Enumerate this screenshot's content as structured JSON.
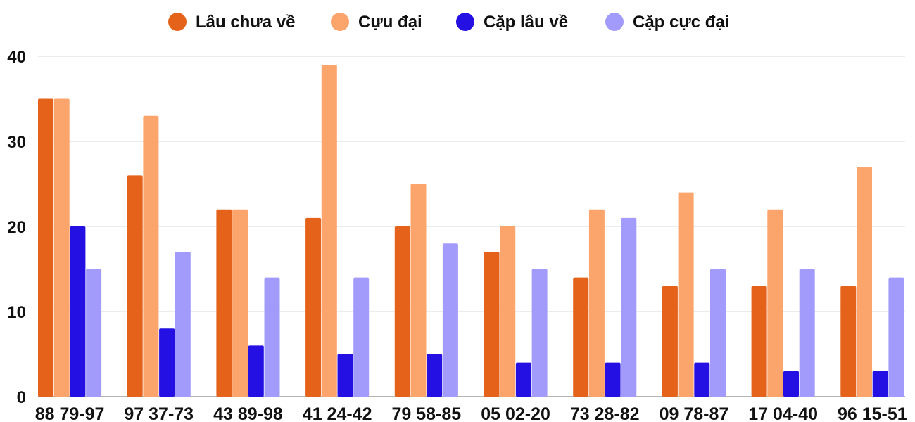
{
  "chart_data": {
    "type": "bar",
    "categories": [
      "88 79-97",
      "97 37-73",
      "43 89-98",
      "41 24-42",
      "79 58-85",
      "05 02-20",
      "73 28-82",
      "09 78-87",
      "17 04-40",
      "96 15-51"
    ],
    "series": [
      {
        "name": "Lâu chưa về",
        "color": "#E4621A",
        "values": [
          35,
          26,
          22,
          21,
          20,
          17,
          14,
          13,
          13,
          13
        ]
      },
      {
        "name": "Cựu đại",
        "color": "#FBA46C",
        "values": [
          35,
          33,
          22,
          39,
          25,
          20,
          22,
          24,
          22,
          27
        ]
      },
      {
        "name": "Cặp lâu về",
        "color": "#2510E3",
        "values": [
          20,
          8,
          6,
          5,
          5,
          4,
          4,
          4,
          3,
          3
        ]
      },
      {
        "name": "Cặp cực đại",
        "color": "#A29BFB",
        "values": [
          15,
          17,
          14,
          14,
          18,
          15,
          21,
          15,
          15,
          14
        ]
      }
    ],
    "y_ticks": [
      "0",
      "10",
      "20",
      "30",
      "40"
    ],
    "ylim": [
      0,
      40
    ],
    "grid": true,
    "legend_position": "top-center"
  }
}
